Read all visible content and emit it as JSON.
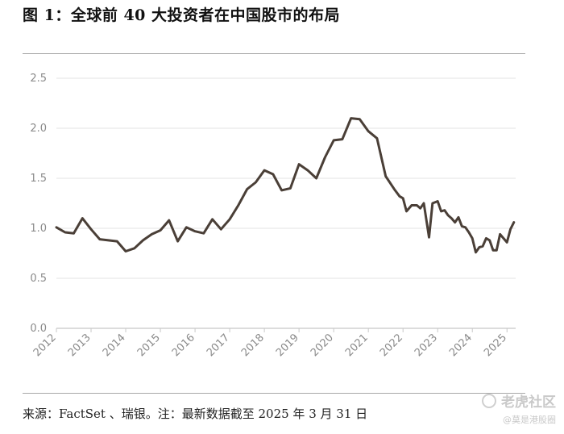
{
  "figure": {
    "title": "图 1：全球前 40 大投资者在中国股市的布局",
    "source": "来源：FactSet 、瑞银。注：最新数据截至 2025 年 3 月 31 日"
  },
  "watermark": {
    "line1": "老虎社区",
    "line2": "@莫是港股圈"
  },
  "chart_data": {
    "type": "line",
    "title": "",
    "xlabel": "",
    "ylabel": "",
    "ylim": [
      0,
      2.5
    ],
    "xlim": [
      2012,
      2025.25
    ],
    "grid": true,
    "yticks": [
      0,
      0.5,
      1.0,
      1.5,
      2.0,
      2.5
    ],
    "ytick_labels": [
      "0.0",
      "0.5",
      "1.0",
      "1.5",
      "2.0",
      "2.5"
    ],
    "xticks": [
      2012,
      2013,
      2014,
      2015,
      2016,
      2017,
      2018,
      2019,
      2020,
      2021,
      2022,
      2023,
      2024,
      2025
    ],
    "xtick_labels": [
      "2012",
      "2013",
      "2014",
      "2015",
      "2016",
      "2017",
      "2018",
      "2019",
      "2020",
      "2021",
      "2022",
      "2023",
      "2024",
      "2025"
    ],
    "colors": {
      "line": "#4a3f37",
      "grid": "#e3e3e3",
      "axis": "#c8c8c8"
    },
    "series": [
      {
        "x": [
          2012.0,
          2012.25,
          2012.5,
          2012.75,
          2013.0,
          2013.25,
          2013.5,
          2013.75,
          2014.0,
          2014.25,
          2014.5,
          2014.75,
          2015.0,
          2015.25,
          2015.5,
          2015.75,
          2016.0,
          2016.25,
          2016.5,
          2016.75,
          2017.0,
          2017.25,
          2017.5,
          2017.75,
          2018.0,
          2018.25,
          2018.5,
          2018.75,
          2019.0,
          2019.25,
          2019.5,
          2019.75,
          2020.0,
          2020.25,
          2020.5,
          2020.75,
          2021.0,
          2021.25,
          2021.5,
          2021.75,
          2021.9,
          2022.0,
          2022.1,
          2022.25,
          2022.4,
          2022.5,
          2022.6,
          2022.75,
          2022.85,
          2023.0,
          2023.1,
          2023.2,
          2023.3,
          2023.4,
          2023.5,
          2023.6,
          2023.7,
          2023.8,
          2023.9,
          2024.0,
          2024.1,
          2024.2,
          2024.3,
          2024.4,
          2024.5,
          2024.6,
          2024.7,
          2024.8,
          2024.9,
          2025.0,
          2025.1,
          2025.2
        ],
        "y": [
          1.01,
          0.96,
          0.95,
          1.1,
          0.99,
          0.89,
          0.88,
          0.87,
          0.77,
          0.8,
          0.88,
          0.94,
          0.98,
          1.08,
          0.87,
          1.01,
          0.97,
          0.95,
          1.09,
          0.99,
          1.09,
          1.23,
          1.39,
          1.46,
          1.58,
          1.54,
          1.38,
          1.4,
          1.64,
          1.58,
          1.5,
          1.71,
          1.88,
          1.89,
          2.1,
          2.09,
          1.97,
          1.9,
          1.52,
          1.39,
          1.32,
          1.3,
          1.17,
          1.23,
          1.23,
          1.2,
          1.25,
          0.91,
          1.25,
          1.27,
          1.17,
          1.18,
          1.13,
          1.1,
          1.06,
          1.11,
          1.02,
          1.01,
          0.96,
          0.9,
          0.76,
          0.81,
          0.82,
          0.9,
          0.88,
          0.78,
          0.78,
          0.94,
          0.9,
          0.86,
          0.99,
          1.06
        ]
      }
    ]
  }
}
